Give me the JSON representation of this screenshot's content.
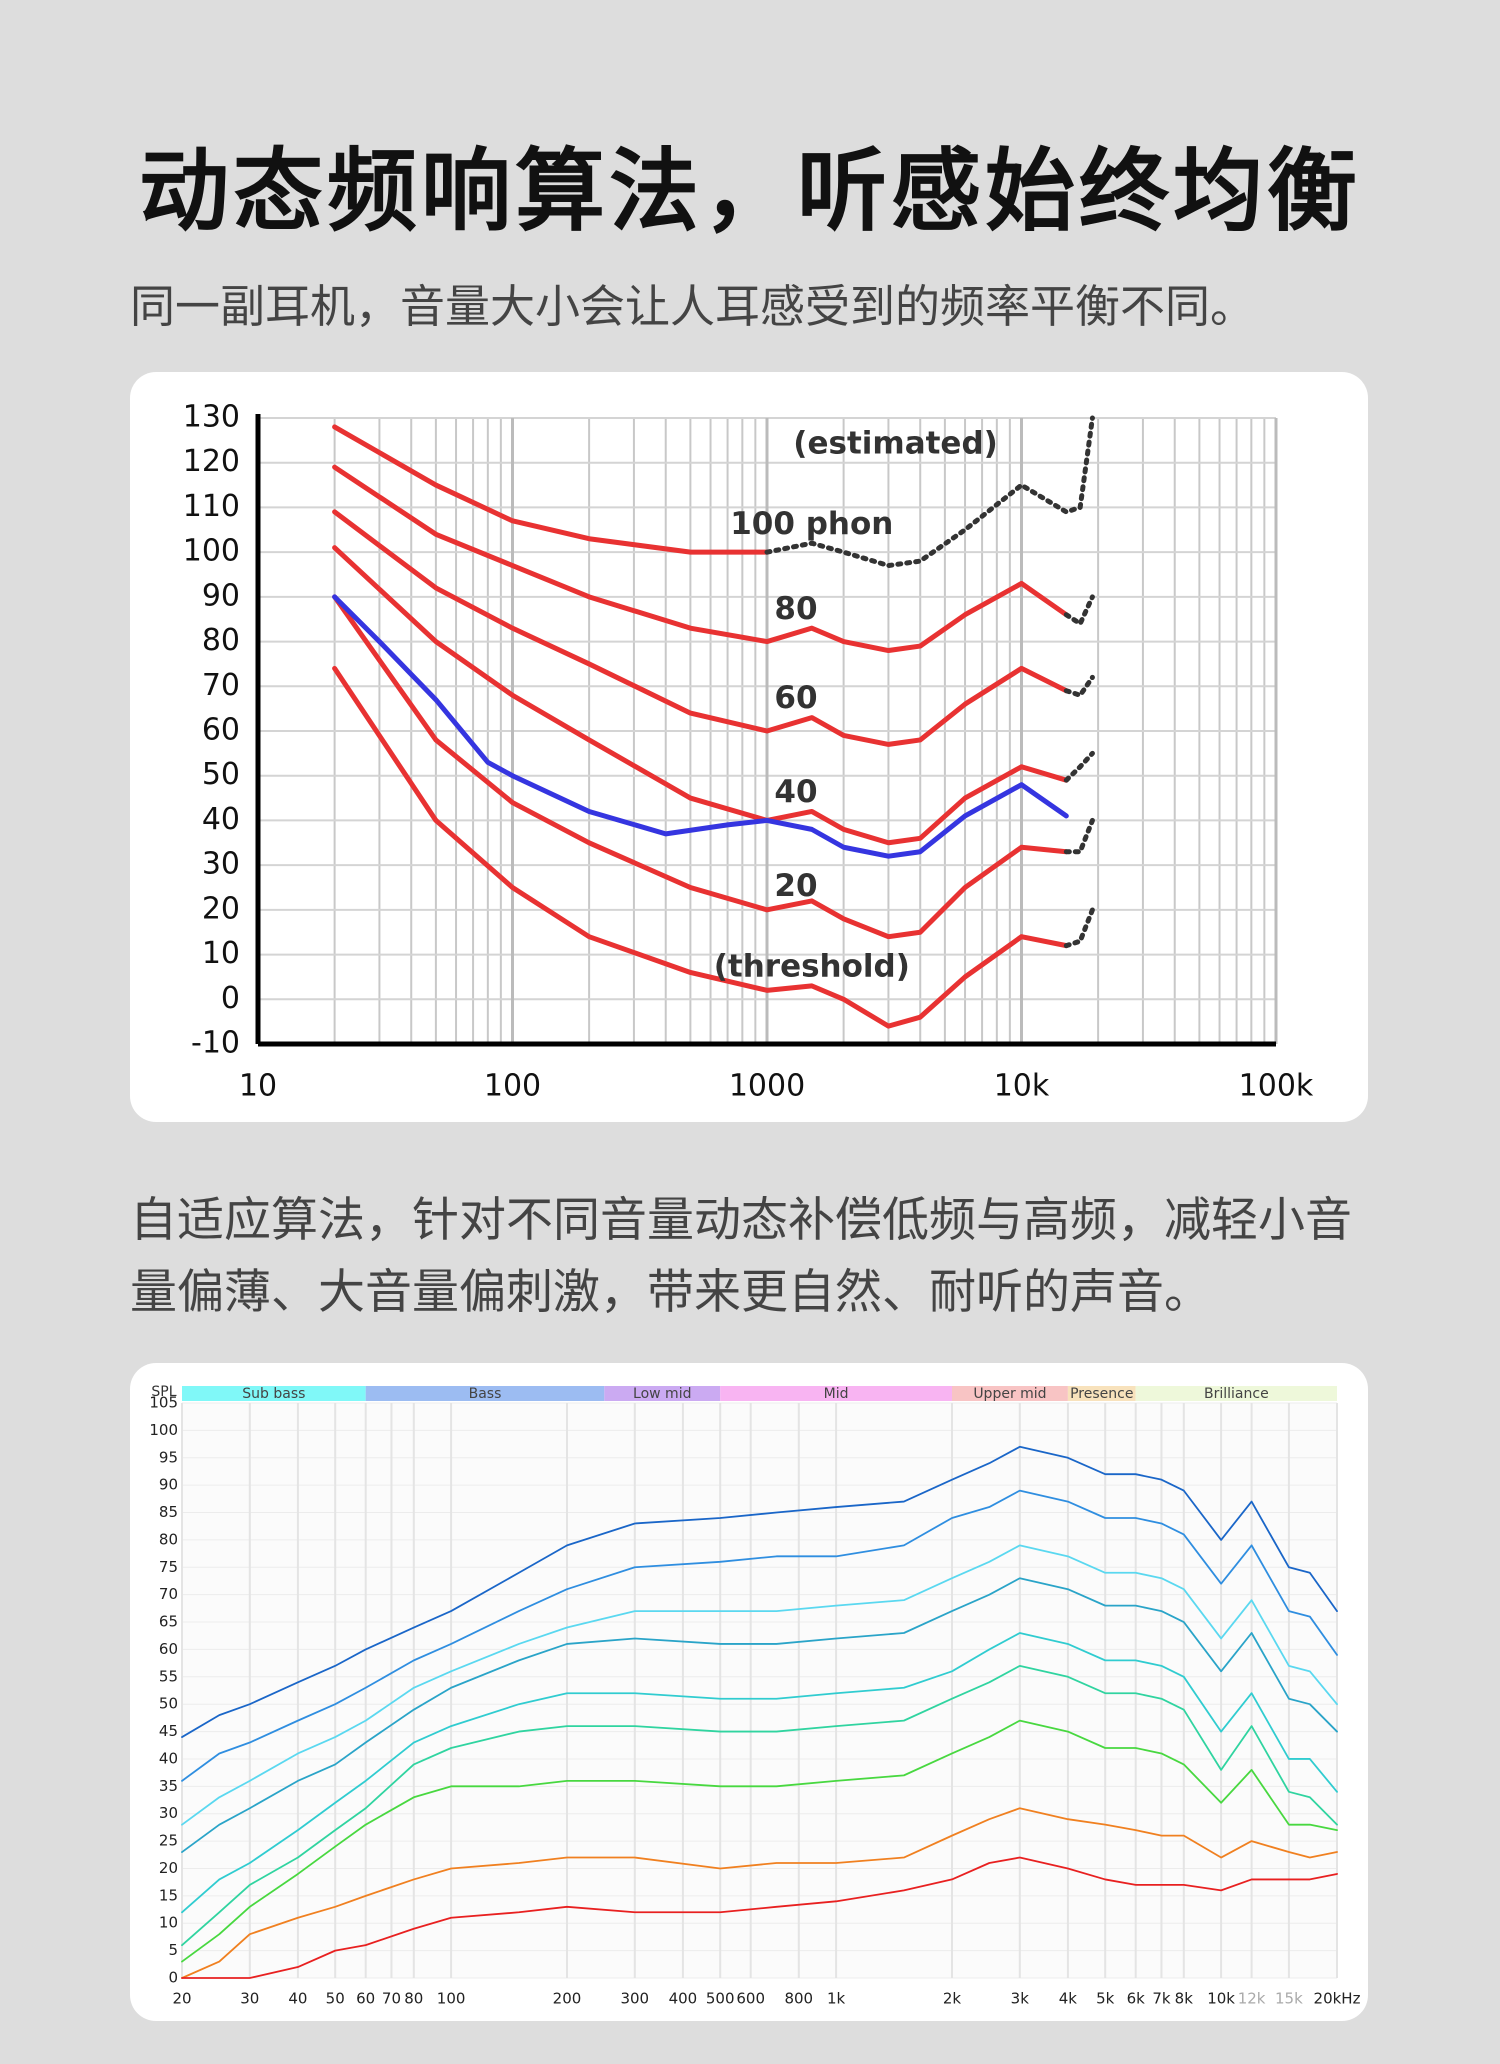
{
  "header": {
    "title": "动态频响算法，听感始终均衡",
    "subtitle": "同一副耳机，音量大小会让人耳感受到的频率平衡不同。"
  },
  "body": "自适应算法，针对不同音量动态补偿低频与高频，减轻小音量偏薄、大音量偏刺激，带来更自然、耐听的声音。",
  "chart_data": [
    {
      "type": "line",
      "xscale": "log",
      "xlim": [
        10,
        100000
      ],
      "ylim": [
        -10,
        130
      ],
      "xticks": [
        10,
        100,
        1000,
        {
          "value": 10000,
          "label": "10k"
        },
        {
          "value": 100000,
          "label": "100k"
        }
      ],
      "yticks": [
        -10,
        0,
        10,
        20,
        30,
        40,
        50,
        60,
        70,
        80,
        90,
        100,
        110,
        120,
        130
      ],
      "grid": true,
      "minor_grid": true,
      "annotations": [
        "(estimated)",
        "100 phon",
        "80",
        "60",
        "40",
        "20",
        "(threshold)"
      ],
      "series": [
        {
          "color": "#e83232",
          "x": [
            20,
            50,
            100,
            200,
            500,
            1000,
            1500,
            2000,
            3000,
            4000,
            6000,
            10000,
            15000
          ],
          "values": [
            74,
            40,
            25,
            14,
            6,
            2,
            3,
            0,
            -6,
            -4,
            5,
            14,
            12
          ]
        },
        {
          "color": "#e83232",
          "x": [
            20,
            50,
            100,
            200,
            500,
            1000,
            1500,
            2000,
            3000,
            4000,
            6000,
            10000,
            15000
          ],
          "values": [
            90,
            58,
            44,
            35,
            25,
            20,
            22,
            18,
            14,
            15,
            25,
            34,
            33
          ]
        },
        {
          "color": "#e83232",
          "x": [
            20,
            50,
            100,
            200,
            500,
            1000,
            1500,
            2000,
            3000,
            4000,
            6000,
            10000,
            15000
          ],
          "values": [
            101,
            80,
            68,
            58,
            45,
            40,
            42,
            38,
            35,
            36,
            45,
            52,
            49
          ]
        },
        {
          "color": "#e83232",
          "x": [
            20,
            50,
            100,
            200,
            500,
            1000,
            1500,
            2000,
            3000,
            4000,
            6000,
            10000,
            15000
          ],
          "values": [
            109,
            92,
            83,
            75,
            64,
            60,
            63,
            59,
            57,
            58,
            66,
            74,
            69
          ]
        },
        {
          "color": "#e83232",
          "x": [
            20,
            50,
            100,
            200,
            500,
            1000,
            1500,
            2000,
            3000,
            4000,
            6000,
            10000,
            15000
          ],
          "values": [
            119,
            104,
            97,
            90,
            83,
            80,
            83,
            80,
            78,
            79,
            86,
            93,
            86
          ]
        },
        {
          "color": "#e83232",
          "x": [
            20,
            50,
            100,
            200,
            500,
            1000
          ],
          "values": [
            128,
            115,
            107,
            103,
            100,
            100
          ]
        },
        {
          "color": "#333333",
          "dash": true,
          "x": [
            1000,
            1500,
            2000,
            3000,
            4000,
            6000,
            10000,
            15000,
            17000,
            19000
          ],
          "values": [
            100,
            102,
            100,
            97,
            98,
            105,
            115,
            109,
            110,
            130
          ]
        },
        {
          "color": "#333333",
          "dash": true,
          "x": [
            15000,
            17000,
            19000
          ],
          "values": [
            86,
            84,
            90
          ]
        },
        {
          "color": "#333333",
          "dash": true,
          "x": [
            15000,
            17000,
            19000
          ],
          "values": [
            69,
            68,
            72
          ]
        },
        {
          "color": "#333333",
          "dash": true,
          "x": [
            15000,
            17000,
            19000
          ],
          "values": [
            49,
            52,
            55
          ]
        },
        {
          "color": "#333333",
          "dash": true,
          "x": [
            15000,
            17000,
            19000
          ],
          "values": [
            33,
            33,
            40
          ]
        },
        {
          "color": "#333333",
          "dash": true,
          "x": [
            15000,
            17000,
            19000
          ],
          "values": [
            12,
            13,
            20
          ]
        },
        {
          "color": "#3535e0",
          "x": [
            20,
            30,
            50,
            80,
            100,
            200,
            400,
            700,
            1000,
            1500,
            2000,
            3000,
            4000,
            6000,
            10000,
            15000
          ],
          "values": [
            90,
            80,
            67,
            53,
            50,
            42,
            37,
            39,
            40,
            38,
            34,
            32,
            33,
            41,
            48,
            41
          ]
        }
      ]
    },
    {
      "type": "line",
      "xscale": "log",
      "xlim": [
        20,
        20000
      ],
      "ylim": [
        0,
        105
      ],
      "y_label": "SPL",
      "xticks": [
        20,
        30,
        40,
        50,
        60,
        70,
        80,
        100,
        200,
        300,
        400,
        500,
        600,
        800,
        {
          "value": 1000,
          "label": "1k"
        },
        {
          "value": 2000,
          "label": "2k"
        },
        {
          "value": 3000,
          "label": "3k"
        },
        {
          "value": 4000,
          "label": "4k"
        },
        {
          "value": 5000,
          "label": "5k"
        },
        {
          "value": 6000,
          "label": "6k"
        },
        {
          "value": 7000,
          "label": "7k"
        },
        {
          "value": 8000,
          "label": "8k"
        },
        {
          "value": 10000,
          "label": "10k"
        },
        {
          "value": 12000,
          "label": "12k",
          "color": "#aaaaaa"
        },
        {
          "value": 15000,
          "label": "15k",
          "color": "#aaaaaa"
        },
        {
          "value": 20000,
          "label": "20kHz"
        }
      ],
      "yticks": [
        0,
        5,
        10,
        15,
        20,
        25,
        30,
        35,
        40,
        45,
        50,
        55,
        60,
        65,
        70,
        75,
        80,
        85,
        90,
        95,
        100,
        105
      ],
      "grid": true,
      "bands": [
        {
          "name": "Sub bass",
          "range": [
            20,
            60
          ],
          "color": "#80f8f8"
        },
        {
          "name": "Bass",
          "range": [
            60,
            250
          ],
          "color": "#9cbcf2"
        },
        {
          "name": "Low mid",
          "range": [
            250,
            500
          ],
          "color": "#cbaaf2"
        },
        {
          "name": "Mid",
          "range": [
            500,
            2000
          ],
          "color": "#f8b4f2"
        },
        {
          "name": "Upper mid",
          "range": [
            2000,
            4000
          ],
          "color": "#f8c4c4"
        },
        {
          "name": "Presence",
          "range": [
            4000,
            6000
          ],
          "color": "#f8e2bc"
        },
        {
          "name": "Brilliance",
          "range": [
            6000,
            20000
          ],
          "color": "#eef8da"
        }
      ],
      "x": [
        20,
        25,
        30,
        40,
        50,
        60,
        80,
        100,
        150,
        200,
        300,
        500,
        700,
        1000,
        1500,
        2000,
        2500,
        3000,
        4000,
        5000,
        6000,
        7000,
        8000,
        10000,
        12000,
        15000,
        17000,
        20000
      ],
      "series": [
        {
          "color": "#1a66c8",
          "values": [
            44,
            48,
            50,
            54,
            57,
            60,
            64,
            67,
            74,
            79,
            83,
            84,
            85,
            86,
            87,
            91,
            94,
            97,
            95,
            92,
            92,
            91,
            89,
            80,
            87,
            75,
            74,
            67
          ]
        },
        {
          "color": "#2f8ee0",
          "values": [
            36,
            41,
            43,
            47,
            50,
            53,
            58,
            61,
            67,
            71,
            75,
            76,
            77,
            77,
            79,
            84,
            86,
            89,
            87,
            84,
            84,
            83,
            81,
            72,
            79,
            67,
            66,
            59
          ]
        },
        {
          "color": "#5ad8f0",
          "values": [
            28,
            33,
            36,
            41,
            44,
            47,
            53,
            56,
            61,
            64,
            67,
            67,
            67,
            68,
            69,
            73,
            76,
            79,
            77,
            74,
            74,
            73,
            71,
            62,
            69,
            57,
            56,
            50
          ]
        },
        {
          "color": "#2aa4c8",
          "values": [
            23,
            28,
            31,
            36,
            39,
            43,
            49,
            53,
            58,
            61,
            62,
            61,
            61,
            62,
            63,
            67,
            70,
            73,
            71,
            68,
            68,
            67,
            65,
            56,
            63,
            51,
            50,
            45
          ]
        },
        {
          "color": "#30ccd0",
          "values": [
            12,
            18,
            21,
            27,
            32,
            36,
            43,
            46,
            50,
            52,
            52,
            51,
            51,
            52,
            53,
            56,
            60,
            63,
            61,
            58,
            58,
            57,
            55,
            45,
            52,
            40,
            40,
            34
          ]
        },
        {
          "color": "#30d4a0",
          "values": [
            6,
            12,
            17,
            22,
            27,
            31,
            39,
            42,
            45,
            46,
            46,
            45,
            45,
            46,
            47,
            51,
            54,
            57,
            55,
            52,
            52,
            51,
            49,
            38,
            46,
            34,
            33,
            28
          ]
        },
        {
          "color": "#48d840",
          "values": [
            3,
            8,
            13,
            19,
            24,
            28,
            33,
            35,
            35,
            36,
            36,
            35,
            35,
            36,
            37,
            41,
            44,
            47,
            45,
            42,
            42,
            41,
            39,
            32,
            38,
            28,
            28,
            27
          ]
        },
        {
          "color": "#f08020",
          "values": [
            0,
            3,
            8,
            11,
            13,
            15,
            18,
            20,
            21,
            22,
            22,
            20,
            21,
            21,
            22,
            26,
            29,
            31,
            29,
            28,
            27,
            26,
            26,
            22,
            25,
            23,
            22,
            23
          ]
        },
        {
          "color": "#e82020",
          "values": [
            0,
            0,
            0,
            2,
            5,
            6,
            9,
            11,
            12,
            13,
            12,
            12,
            13,
            14,
            16,
            18,
            21,
            22,
            20,
            18,
            17,
            17,
            17,
            16,
            18,
            18,
            18,
            19
          ]
        }
      ]
    }
  ]
}
